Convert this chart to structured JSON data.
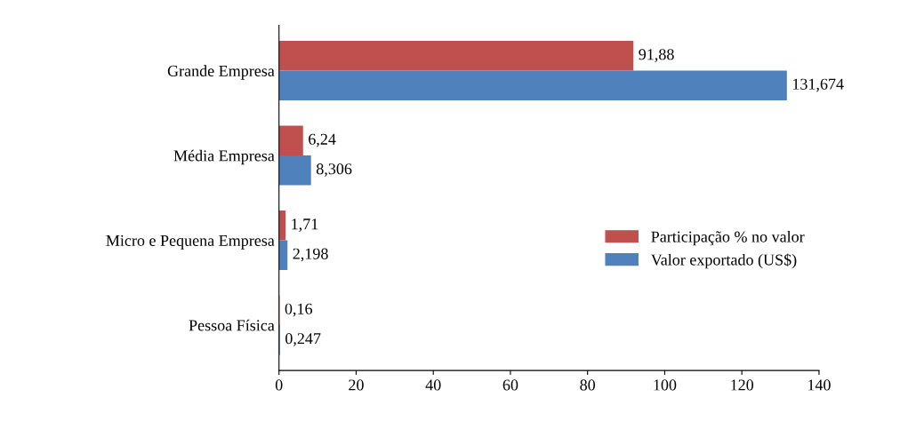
{
  "chart_data": {
    "type": "bar",
    "orientation": "horizontal",
    "categories": [
      "Grande Empresa",
      "Média Empresa",
      "Micro e Pequena Empresa",
      "Pessoa Física"
    ],
    "series": [
      {
        "name": "Participação % no valor",
        "color": "#c0504d",
        "values": [
          91.88,
          6.24,
          1.71,
          0.16
        ],
        "value_labels": [
          "91,88",
          "6,24",
          "1,71",
          "0,16"
        ]
      },
      {
        "name": "Valor exportado (US$)",
        "color": "#4f81bd",
        "values": [
          131.674,
          8.306,
          2.198,
          0.247
        ],
        "value_labels": [
          "131,674",
          "8,306",
          "2,198",
          "0,247"
        ]
      }
    ],
    "xlim": [
      0,
      140
    ],
    "xticks": [
      0,
      20,
      40,
      60,
      80,
      100,
      120,
      140
    ],
    "grid": false,
    "legend": "right"
  }
}
